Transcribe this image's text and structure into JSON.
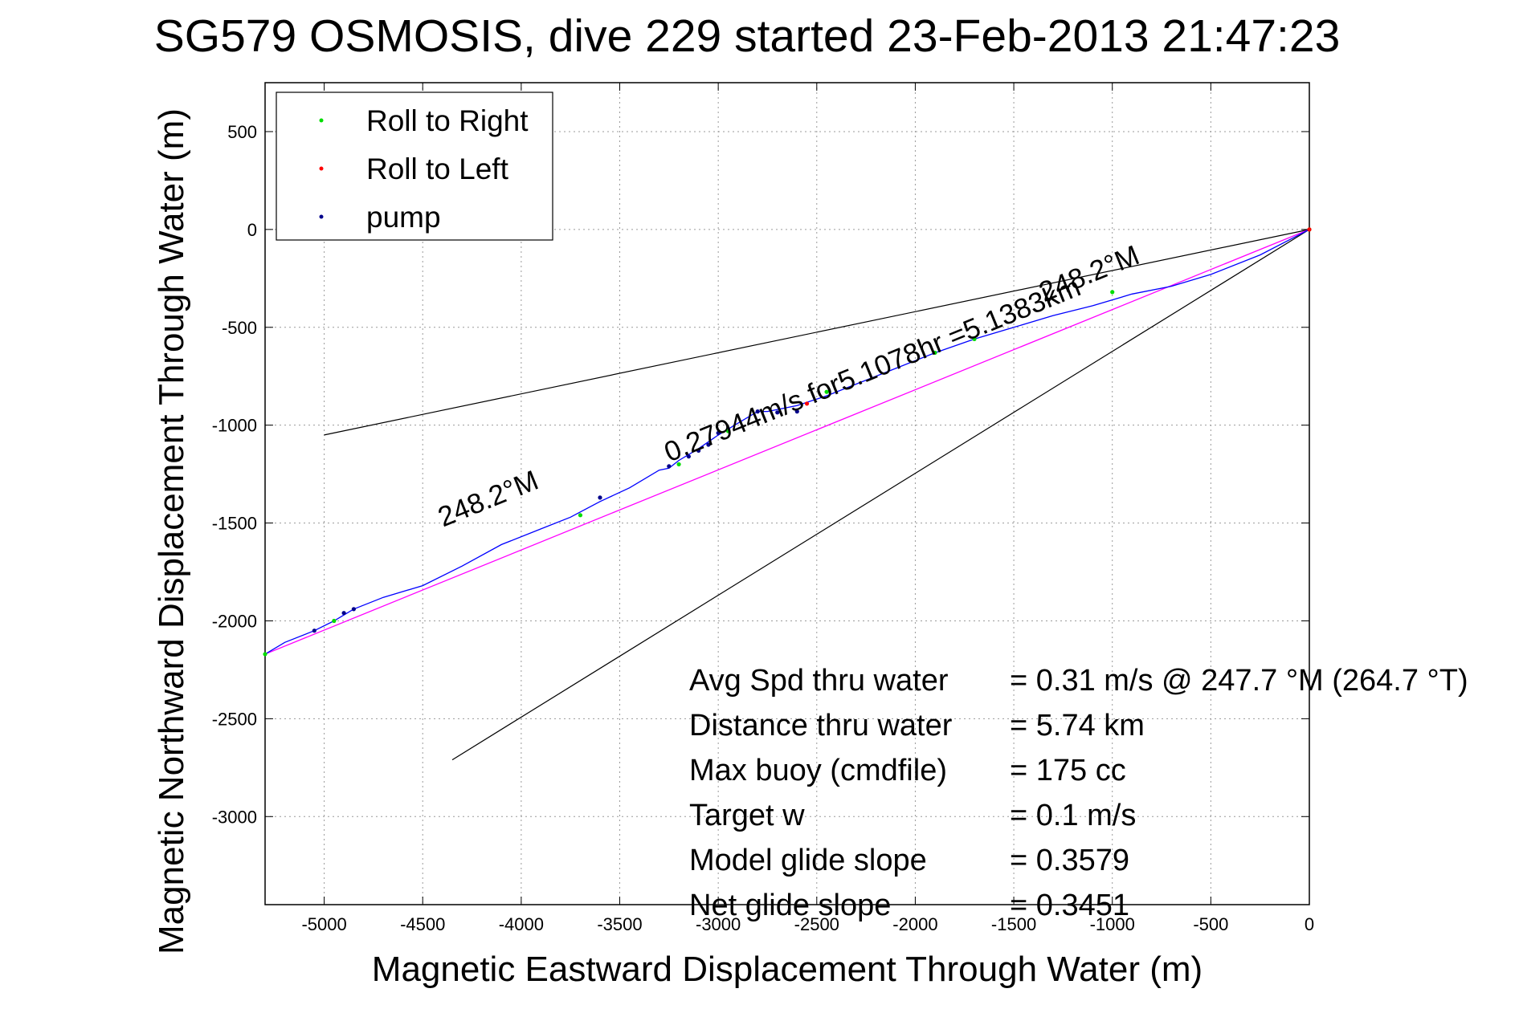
{
  "chart_data": {
    "type": "line",
    "title": "SG579 OSMOSIS, dive 229 started 23-Feb-2013 21:47:23",
    "xlabel": "Magnetic Eastward Displacement Through Water (m)",
    "ylabel": "Magnetic Northward Displacement Through Water (m)",
    "xlim": [
      -5300,
      0
    ],
    "ylim": [
      -3450,
      750
    ],
    "x_ticks": [
      -5000,
      -4500,
      -4000,
      -3500,
      -3000,
      -2500,
      -2000,
      -1500,
      -1000,
      -500,
      0
    ],
    "x_tick_labels": [
      "-5000",
      "-4500",
      "-4000",
      "-3500",
      "-3000",
      "-2500",
      "-2000",
      "-1500",
      "-1000",
      "-500",
      "0"
    ],
    "y_ticks": [
      500,
      0,
      -500,
      -1000,
      -1500,
      -2000,
      -2500,
      -3000
    ],
    "y_tick_labels": [
      "500",
      "0",
      "-500",
      "-1000",
      "-1500",
      "-2000",
      "-2500",
      "-3000"
    ],
    "grid": true,
    "legend_position": "top-left",
    "legend": [
      {
        "label": "Roll to Right",
        "color": "#00dd00"
      },
      {
        "label": "Roll to Left",
        "color": "#ff0000"
      },
      {
        "label": "pump",
        "color": "#00008b"
      }
    ],
    "track": {
      "color": "#0000ff",
      "x": [
        0,
        -250,
        -500,
        -700,
        -900,
        -1000,
        -1100,
        -1300,
        -1500,
        -1700,
        -1900,
        -2100,
        -2300,
        -2450,
        -2600,
        -2750,
        -2800,
        -2900,
        -3000,
        -3100,
        -3200,
        -3250,
        -3300,
        -3450,
        -3600,
        -3750,
        -3900,
        -4100,
        -4300,
        -4500,
        -4700,
        -4850,
        -4950,
        -5050,
        -5200,
        -5300
      ],
      "y": [
        0,
        -130,
        -230,
        -290,
        -330,
        -360,
        -390,
        -440,
        -500,
        -560,
        -630,
        -710,
        -790,
        -850,
        -900,
        -930,
        -930,
        -990,
        -1050,
        -1120,
        -1180,
        -1220,
        -1230,
        -1320,
        -1390,
        -1470,
        -1530,
        -1610,
        -1720,
        -1820,
        -1880,
        -1940,
        -2000,
        -2050,
        -2110,
        -2170
      ]
    },
    "markers": {
      "roll_right": {
        "x": [
          0,
          -1000,
          -1700,
          -1900,
          -2450,
          -2950,
          -3200,
          -3700,
          -4950,
          -5300
        ],
        "y": [
          0,
          -320,
          -560,
          -630,
          -830,
          -1030,
          -1200,
          -1460,
          -2000,
          -2170
        ]
      },
      "roll_left": {
        "x": [
          0,
          -2550
        ],
        "y": [
          0,
          -890
        ]
      },
      "pump": {
        "x": [
          -2800,
          -2700,
          -2600,
          -3000,
          -3050,
          -3100,
          -3150,
          -3250,
          -3600,
          -4850,
          -4900,
          -5050
        ],
        "y": [
          -930,
          -935,
          -930,
          -1040,
          -1100,
          -1130,
          -1160,
          -1210,
          -1370,
          -1940,
          -1960,
          -2050
        ]
      }
    },
    "mean_line": {
      "color": "#ff00ff",
      "x": [
        0,
        -5300
      ],
      "y": [
        0,
        -2170
      ]
    },
    "envelope_lines": {
      "color": "#000000",
      "upper": {
        "x": [
          0,
          -5000
        ],
        "y": [
          0,
          -1050
        ]
      },
      "lower": {
        "x": [
          0,
          -4350
        ],
        "y": [
          0,
          -2710
        ]
      }
    },
    "rotated_labels": [
      {
        "text": "248.2°M",
        "x": -4150,
        "y": -1420
      },
      {
        "text": "248.2°M",
        "x": -1100,
        "y": -270
      },
      {
        "text": "0.27944m/s for5.1078hr =5.1383km",
        "x": -2200,
        "y": -760
      }
    ],
    "annotations": [
      {
        "label": "Avg Spd thru water",
        "value": "=  0.31 m/s @ 247.7 °M (264.7 °T)"
      },
      {
        "label": "Distance thru water",
        "value": "=  5.74 km"
      },
      {
        "label": "Max buoy (cmdfile)",
        "value": "= 175 cc"
      },
      {
        "label": "Target w",
        "value": "= 0.1 m/s"
      },
      {
        "label": "Model glide slope",
        "value": "= 0.3579"
      },
      {
        "label": "Net glide slope",
        "value": "= 0.3451"
      }
    ]
  }
}
